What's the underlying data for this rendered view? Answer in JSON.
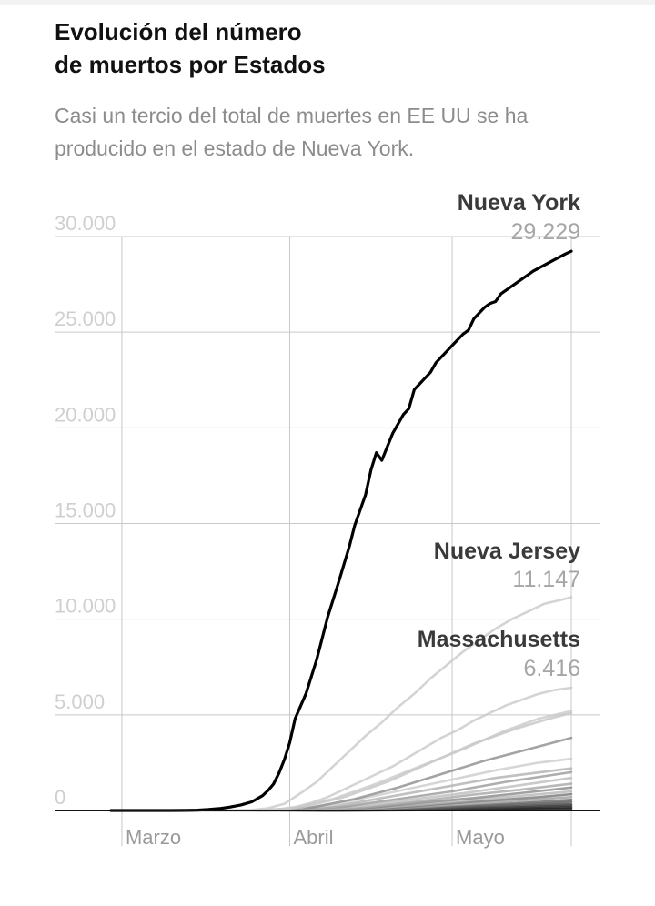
{
  "header": {
    "title_line1": "Evolución del número",
    "title_line2": "de muertos por Estados",
    "subtitle_line1": "Casi un tercio del total de muertes en EE UU se ha",
    "subtitle_line2": "producido en el estado de Nueva York."
  },
  "chart_data": {
    "type": "line",
    "title": "Evolución del número de muertos por Estados",
    "xlabel": "",
    "ylabel": "",
    "y_ticks": [
      "0",
      "5.000",
      "10.000",
      "15.000",
      "20.000",
      "25.000",
      "30.000"
    ],
    "y_tick_values": [
      0,
      5000,
      10000,
      15000,
      20000,
      25000,
      30000
    ],
    "ylim": [
      0,
      30000
    ],
    "x_ticks": [
      "Marzo",
      "Abril",
      "Mayo"
    ],
    "x_tick_days": [
      1,
      32,
      62
    ],
    "x_range_days": [
      0,
      84
    ],
    "x_unit": "day of year 2020 (Mar 1 = 1)",
    "grid": true,
    "series": [
      {
        "name": "Nueva York",
        "label_value": "29.229",
        "color": "#000000",
        "highlight": true,
        "points": [
          [
            -1,
            0
          ],
          [
            5,
            0
          ],
          [
            10,
            0
          ],
          [
            13,
            5
          ],
          [
            15,
            20
          ],
          [
            17,
            50
          ],
          [
            19,
            100
          ],
          [
            21,
            180
          ],
          [
            23,
            290
          ],
          [
            25,
            450
          ],
          [
            27,
            780
          ],
          [
            28,
            1050
          ],
          [
            29,
            1380
          ],
          [
            30,
            1950
          ],
          [
            31,
            2650
          ],
          [
            32,
            3550
          ],
          [
            33,
            4800
          ],
          [
            35,
            6100
          ],
          [
            37,
            7900
          ],
          [
            39,
            10100
          ],
          [
            41,
            11900
          ],
          [
            43,
            13800
          ],
          [
            44,
            14900
          ],
          [
            46,
            16500
          ],
          [
            47,
            17800
          ],
          [
            48,
            18700
          ],
          [
            49,
            18300
          ],
          [
            50,
            19000
          ],
          [
            51,
            19700
          ],
          [
            53,
            20700
          ],
          [
            54,
            21000
          ],
          [
            55,
            22000
          ],
          [
            56,
            22300
          ],
          [
            58,
            22900
          ],
          [
            59,
            23400
          ],
          [
            60,
            23700
          ],
          [
            61,
            24000
          ],
          [
            62,
            24300
          ],
          [
            64,
            24900
          ],
          [
            65,
            25100
          ],
          [
            66,
            25700
          ],
          [
            67,
            26000
          ],
          [
            68,
            26300
          ],
          [
            69,
            26500
          ],
          [
            70,
            26600
          ],
          [
            71,
            27000
          ],
          [
            73,
            27400
          ],
          [
            75,
            27800
          ],
          [
            77,
            28200
          ],
          [
            79,
            28500
          ],
          [
            81,
            28800
          ],
          [
            83,
            29100
          ],
          [
            84,
            29229
          ]
        ]
      },
      {
        "name": "Nueva Jersey",
        "label_value": "11.147",
        "color": "#c9c9c9",
        "highlight": true,
        "points": [
          [
            -1,
            0
          ],
          [
            20,
            0
          ],
          [
            25,
            30
          ],
          [
            28,
            120
          ],
          [
            31,
            350
          ],
          [
            34,
            900
          ],
          [
            37,
            1500
          ],
          [
            40,
            2300
          ],
          [
            43,
            3100
          ],
          [
            46,
            3900
          ],
          [
            49,
            4600
          ],
          [
            52,
            5400
          ],
          [
            55,
            6100
          ],
          [
            58,
            6900
          ],
          [
            61,
            7600
          ],
          [
            64,
            8300
          ],
          [
            67,
            8900
          ],
          [
            70,
            9500
          ],
          [
            73,
            10000
          ],
          [
            76,
            10400
          ],
          [
            79,
            10800
          ],
          [
            82,
            11000
          ],
          [
            84,
            11147
          ]
        ]
      },
      {
        "name": "Massachusetts",
        "label_value": "6.416",
        "color": "#c9c9c9",
        "highlight": true,
        "points": [
          [
            -1,
            0
          ],
          [
            22,
            0
          ],
          [
            27,
            20
          ],
          [
            30,
            60
          ],
          [
            33,
            180
          ],
          [
            36,
            400
          ],
          [
            39,
            700
          ],
          [
            42,
            1100
          ],
          [
            45,
            1500
          ],
          [
            48,
            1900
          ],
          [
            51,
            2300
          ],
          [
            54,
            2800
          ],
          [
            57,
            3300
          ],
          [
            60,
            3800
          ],
          [
            63,
            4200
          ],
          [
            66,
            4700
          ],
          [
            69,
            5100
          ],
          [
            72,
            5500
          ],
          [
            75,
            5800
          ],
          [
            78,
            6100
          ],
          [
            81,
            6300
          ],
          [
            84,
            6416
          ]
        ]
      },
      {
        "name": "",
        "color": "#c9c9c9",
        "points": [
          [
            -1,
            0
          ],
          [
            25,
            0
          ],
          [
            32,
            100
          ],
          [
            40,
            600
          ],
          [
            48,
            1400
          ],
          [
            56,
            2300
          ],
          [
            64,
            3200
          ],
          [
            72,
            4200
          ],
          [
            78,
            4800
          ],
          [
            84,
            5200
          ]
        ]
      },
      {
        "name": "",
        "color": "#c4c4c4",
        "points": [
          [
            -1,
            0
          ],
          [
            26,
            0
          ],
          [
            34,
            150
          ],
          [
            42,
            700
          ],
          [
            50,
            1500
          ],
          [
            58,
            2500
          ],
          [
            66,
            3500
          ],
          [
            74,
            4300
          ],
          [
            80,
            4800
          ],
          [
            84,
            5100
          ]
        ]
      },
      {
        "name": "",
        "color": "#8c8c8c",
        "points": [
          [
            -1,
            0
          ],
          [
            28,
            0
          ],
          [
            36,
            150
          ],
          [
            44,
            600
          ],
          [
            52,
            1200
          ],
          [
            60,
            1900
          ],
          [
            68,
            2600
          ],
          [
            76,
            3200
          ],
          [
            84,
            3800
          ]
        ]
      },
      {
        "name": "",
        "color": "#cccccc",
        "points": [
          [
            -1,
            0
          ],
          [
            30,
            0
          ],
          [
            40,
            300
          ],
          [
            50,
            900
          ],
          [
            60,
            1500
          ],
          [
            70,
            2100
          ],
          [
            78,
            2500
          ],
          [
            84,
            2700
          ]
        ]
      },
      {
        "name": "",
        "color": "#b0b0b0",
        "points": [
          [
            -1,
            0
          ],
          [
            30,
            0
          ],
          [
            40,
            200
          ],
          [
            50,
            700
          ],
          [
            60,
            1200
          ],
          [
            70,
            1700
          ],
          [
            84,
            2200
          ]
        ]
      },
      {
        "name": "",
        "color": "#9a9a9a",
        "points": [
          [
            -1,
            0
          ],
          [
            32,
            0
          ],
          [
            42,
            200
          ],
          [
            52,
            600
          ],
          [
            62,
            1000
          ],
          [
            72,
            1500
          ],
          [
            84,
            2000
          ]
        ]
      },
      {
        "name": "",
        "color": "#bdbdbd",
        "points": [
          [
            -1,
            0
          ],
          [
            32,
            0
          ],
          [
            44,
            200
          ],
          [
            54,
            550
          ],
          [
            64,
            900
          ],
          [
            74,
            1300
          ],
          [
            84,
            1700
          ]
        ]
      },
      {
        "name": "",
        "color": "#a6a6a6",
        "points": [
          [
            -1,
            0
          ],
          [
            33,
            0
          ],
          [
            45,
            150
          ],
          [
            55,
            450
          ],
          [
            65,
            800
          ],
          [
            75,
            1100
          ],
          [
            84,
            1400
          ]
        ]
      },
      {
        "name": "",
        "color": "#888888",
        "points": [
          [
            -1,
            0
          ],
          [
            34,
            0
          ],
          [
            46,
            120
          ],
          [
            56,
            400
          ],
          [
            66,
            650
          ],
          [
            76,
            950
          ],
          [
            84,
            1200
          ]
        ]
      },
      {
        "name": "",
        "color": "#b5b5b5",
        "points": [
          [
            -1,
            0
          ],
          [
            34,
            0
          ],
          [
            46,
            100
          ],
          [
            56,
            300
          ],
          [
            66,
            550
          ],
          [
            76,
            800
          ],
          [
            84,
            1000
          ]
        ]
      },
      {
        "name": "",
        "color": "#777777",
        "points": [
          [
            -1,
            0
          ],
          [
            35,
            0
          ],
          [
            48,
            100
          ],
          [
            58,
            300
          ],
          [
            68,
            500
          ],
          [
            78,
            700
          ],
          [
            84,
            850
          ]
        ]
      },
      {
        "name": "",
        "color": "#9e9e9e",
        "points": [
          [
            -1,
            0
          ],
          [
            36,
            0
          ],
          [
            48,
            80
          ],
          [
            58,
            220
          ],
          [
            68,
            400
          ],
          [
            78,
            580
          ],
          [
            84,
            700
          ]
        ]
      },
      {
        "name": "",
        "color": "#666666",
        "points": [
          [
            -1,
            0
          ],
          [
            36,
            0
          ],
          [
            50,
            60
          ],
          [
            60,
            180
          ],
          [
            70,
            320
          ],
          [
            80,
            480
          ],
          [
            84,
            560
          ]
        ]
      },
      {
        "name": "",
        "color": "#555555",
        "points": [
          [
            -1,
            0
          ],
          [
            38,
            0
          ],
          [
            50,
            50
          ],
          [
            60,
            140
          ],
          [
            70,
            260
          ],
          [
            80,
            380
          ],
          [
            84,
            450
          ]
        ]
      },
      {
        "name": "",
        "color": "#444444",
        "points": [
          [
            -1,
            0
          ],
          [
            38,
            0
          ],
          [
            52,
            40
          ],
          [
            62,
            110
          ],
          [
            72,
            200
          ],
          [
            84,
            330
          ]
        ]
      },
      {
        "name": "",
        "color": "#333333",
        "points": [
          [
            -1,
            0
          ],
          [
            40,
            0
          ],
          [
            52,
            30
          ],
          [
            62,
            80
          ],
          [
            72,
            150
          ],
          [
            84,
            250
          ]
        ]
      },
      {
        "name": "",
        "color": "#222222",
        "points": [
          [
            -1,
            0
          ],
          [
            40,
            0
          ],
          [
            54,
            20
          ],
          [
            64,
            60
          ],
          [
            74,
            110
          ],
          [
            84,
            170
          ]
        ]
      },
      {
        "name": "",
        "color": "#111111",
        "points": [
          [
            -1,
            0
          ],
          [
            42,
            0
          ],
          [
            56,
            15
          ],
          [
            66,
            40
          ],
          [
            76,
            70
          ],
          [
            84,
            100
          ]
        ]
      }
    ]
  }
}
